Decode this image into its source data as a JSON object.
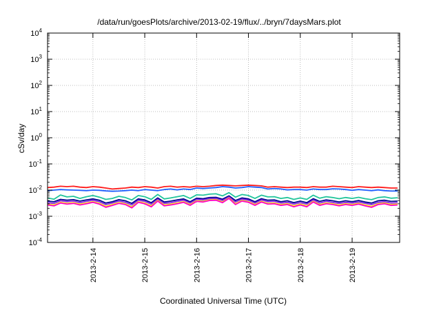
{
  "chart_data": {
    "type": "line",
    "title": "/data/run/goesPlots/archive/2013-02-19/flux/../bryn/7daysMars.plot",
    "xlabel": "Coordinated Universal Time (UTC)",
    "ylabel": "cSv/day",
    "yscale": "log",
    "ylim": [
      0.0001,
      10000
    ],
    "y_ticks": [
      {
        "value": 0.0001,
        "base": "10",
        "exp": "-4"
      },
      {
        "value": 0.001,
        "base": "10",
        "exp": "-3"
      },
      {
        "value": 0.01,
        "base": "10",
        "exp": "-2"
      },
      {
        "value": 0.1,
        "base": "10",
        "exp": "-1"
      },
      {
        "value": 1,
        "base": "10",
        "exp": "0"
      },
      {
        "value": 10,
        "base": "10",
        "exp": "1"
      },
      {
        "value": 100,
        "base": "10",
        "exp": "2"
      },
      {
        "value": 1000,
        "base": "10",
        "exp": "3"
      },
      {
        "value": 10000,
        "base": "10",
        "exp": "4"
      }
    ],
    "xlim": [
      "2013-02-13T03:00",
      "2013-02-19T22:00"
    ],
    "x_ticks": [
      "2013-2-14",
      "2013-2-15",
      "2013-2-16",
      "2013-2-17",
      "2013-2-18",
      "2013-2-19"
    ],
    "grid": true,
    "x": [
      "2013-02-13T03:00",
      "2013-02-13T06:00",
      "2013-02-13T09:00",
      "2013-02-13T12:00",
      "2013-02-13T15:00",
      "2013-02-13T18:00",
      "2013-02-13T21:00",
      "2013-02-14T00:00",
      "2013-02-14T03:00",
      "2013-02-14T06:00",
      "2013-02-14T09:00",
      "2013-02-14T12:00",
      "2013-02-14T15:00",
      "2013-02-14T18:00",
      "2013-02-14T21:00",
      "2013-02-15T00:00",
      "2013-02-15T03:00",
      "2013-02-15T06:00",
      "2013-02-15T09:00",
      "2013-02-15T12:00",
      "2013-02-15T15:00",
      "2013-02-15T18:00",
      "2013-02-15T21:00",
      "2013-02-16T00:00",
      "2013-02-16T03:00",
      "2013-02-16T06:00",
      "2013-02-16T09:00",
      "2013-02-16T12:00",
      "2013-02-16T15:00",
      "2013-02-16T18:00",
      "2013-02-16T21:00",
      "2013-02-17T00:00",
      "2013-02-17T03:00",
      "2013-02-17T06:00",
      "2013-02-17T09:00",
      "2013-02-17T12:00",
      "2013-02-17T15:00",
      "2013-02-17T18:00",
      "2013-02-17T21:00",
      "2013-02-18T00:00",
      "2013-02-18T03:00",
      "2013-02-18T06:00",
      "2013-02-18T09:00",
      "2013-02-18T12:00",
      "2013-02-18T15:00",
      "2013-02-18T18:00",
      "2013-02-18T21:00",
      "2013-02-19T00:00",
      "2013-02-19T03:00",
      "2013-02-19T06:00",
      "2013-02-19T09:00",
      "2013-02-19T12:00",
      "2013-02-19T15:00",
      "2013-02-19T18:00",
      "2013-02-19T21:00"
    ],
    "series": [
      {
        "color": "#ff1a1a",
        "values": [
          0.0125,
          0.013,
          0.014,
          0.0135,
          0.014,
          0.013,
          0.0125,
          0.0135,
          0.013,
          0.012,
          0.011,
          0.0115,
          0.012,
          0.013,
          0.0125,
          0.0135,
          0.013,
          0.012,
          0.0135,
          0.014,
          0.013,
          0.0135,
          0.013,
          0.014,
          0.0135,
          0.014,
          0.015,
          0.0155,
          0.015,
          0.0145,
          0.015,
          0.0155,
          0.015,
          0.0145,
          0.013,
          0.0135,
          0.013,
          0.0125,
          0.013,
          0.013,
          0.0125,
          0.0135,
          0.013,
          0.013,
          0.014,
          0.0135,
          0.013,
          0.0125,
          0.0135,
          0.013,
          0.0125,
          0.013,
          0.0125,
          0.012,
          0.012
        ]
      },
      {
        "color": "#1f5fff",
        "values": [
          0.0095,
          0.01,
          0.0105,
          0.0102,
          0.01,
          0.0098,
          0.0095,
          0.01,
          0.0098,
          0.0093,
          0.009,
          0.0092,
          0.0095,
          0.01,
          0.0095,
          0.0105,
          0.01,
          0.0095,
          0.0105,
          0.011,
          0.0102,
          0.011,
          0.0105,
          0.012,
          0.0115,
          0.012,
          0.0125,
          0.0135,
          0.013,
          0.012,
          0.0125,
          0.0135,
          0.013,
          0.0125,
          0.011,
          0.0115,
          0.011,
          0.0102,
          0.0105,
          0.0105,
          0.01,
          0.011,
          0.0105,
          0.0105,
          0.0112,
          0.011,
          0.0105,
          0.0098,
          0.0105,
          0.01,
          0.0095,
          0.0102,
          0.0095,
          0.0092,
          0.0092
        ]
      },
      {
        "color": "#1fc49a",
        "values": [
          0.005,
          0.0045,
          0.0065,
          0.0055,
          0.0058,
          0.0048,
          0.0056,
          0.0062,
          0.0054,
          0.0044,
          0.0048,
          0.0058,
          0.0052,
          0.0042,
          0.0062,
          0.0056,
          0.0044,
          0.0068,
          0.0046,
          0.005,
          0.0056,
          0.0062,
          0.0048,
          0.0066,
          0.0064,
          0.007,
          0.0072,
          0.006,
          0.008,
          0.0054,
          0.0068,
          0.0062,
          0.0048,
          0.0064,
          0.0055,
          0.0056,
          0.0048,
          0.0052,
          0.0044,
          0.005,
          0.0044,
          0.0064,
          0.0049,
          0.0056,
          0.0052,
          0.0047,
          0.0052,
          0.0048,
          0.0053,
          0.0047,
          0.0043,
          0.0052,
          0.0055,
          0.0049,
          0.0051
        ]
      },
      {
        "color": "#000090",
        "values": [
          0.0038,
          0.0036,
          0.0044,
          0.0041,
          0.0043,
          0.0038,
          0.0042,
          0.0046,
          0.0041,
          0.0032,
          0.0036,
          0.0043,
          0.0039,
          0.0031,
          0.0046,
          0.0042,
          0.0033,
          0.005,
          0.0035,
          0.0038,
          0.0042,
          0.0046,
          0.0036,
          0.0049,
          0.0047,
          0.0052,
          0.0053,
          0.0045,
          0.006,
          0.004,
          0.005,
          0.0046,
          0.0036,
          0.0047,
          0.0041,
          0.0042,
          0.0036,
          0.0039,
          0.0033,
          0.0038,
          0.0033,
          0.0047,
          0.0037,
          0.0042,
          0.0039,
          0.0035,
          0.0039,
          0.0036,
          0.004,
          0.0035,
          0.0032,
          0.0039,
          0.0041,
          0.0037,
          0.0038
        ]
      },
      {
        "color": "#8a2be2",
        "values": [
          0.0033,
          0.0031,
          0.0039,
          0.0036,
          0.0038,
          0.0033,
          0.0037,
          0.0041,
          0.0036,
          0.0028,
          0.0032,
          0.0038,
          0.0034,
          0.0027,
          0.0041,
          0.0037,
          0.0029,
          0.0045,
          0.0031,
          0.0033,
          0.0037,
          0.0041,
          0.0032,
          0.0044,
          0.0042,
          0.0047,
          0.0048,
          0.004,
          0.0055,
          0.0035,
          0.0045,
          0.0041,
          0.0032,
          0.0042,
          0.0036,
          0.0037,
          0.0032,
          0.0034,
          0.0029,
          0.0033,
          0.0029,
          0.0042,
          0.0032,
          0.0037,
          0.0034,
          0.0031,
          0.0034,
          0.0032,
          0.0035,
          0.0031,
          0.0028,
          0.0034,
          0.0036,
          0.0032,
          0.0033
        ]
      },
      {
        "color": "#ffe600",
        "values": [
          0.0029,
          0.0027,
          0.0034,
          0.0031,
          0.0033,
          0.0029,
          0.0032,
          0.0036,
          0.0031,
          0.0024,
          0.0028,
          0.0033,
          0.003,
          0.0023,
          0.0036,
          0.0032,
          0.0025,
          0.004,
          0.0027,
          0.0029,
          0.0032,
          0.0036,
          0.0028,
          0.0039,
          0.0037,
          0.0042,
          0.0043,
          0.0035,
          0.005,
          0.003,
          0.004,
          0.0036,
          0.0028,
          0.0037,
          0.0031,
          0.0032,
          0.0028,
          0.003,
          0.0025,
          0.0029,
          0.0025,
          0.0037,
          0.0028,
          0.0032,
          0.003,
          0.0027,
          0.003,
          0.0028,
          0.0031,
          0.0027,
          0.0024,
          0.003,
          0.0032,
          0.0028,
          0.0029
        ]
      },
      {
        "color": "#ff00cc",
        "values": [
          0.0027,
          0.0025,
          0.0032,
          0.0029,
          0.0031,
          0.0027,
          0.003,
          0.0034,
          0.0029,
          0.0022,
          0.0026,
          0.0031,
          0.0028,
          0.0021,
          0.0034,
          0.003,
          0.0023,
          0.0038,
          0.0025,
          0.0027,
          0.003,
          0.0034,
          0.0026,
          0.0037,
          0.0035,
          0.004,
          0.0041,
          0.0033,
          0.0048,
          0.0028,
          0.0038,
          0.0034,
          0.0026,
          0.0035,
          0.0029,
          0.003,
          0.0026,
          0.0028,
          0.0023,
          0.0027,
          0.0023,
          0.0035,
          0.0026,
          0.003,
          0.0028,
          0.0025,
          0.0028,
          0.0026,
          0.0029,
          0.0025,
          0.0022,
          0.0028,
          0.003,
          0.0026,
          0.0027
        ]
      }
    ]
  }
}
